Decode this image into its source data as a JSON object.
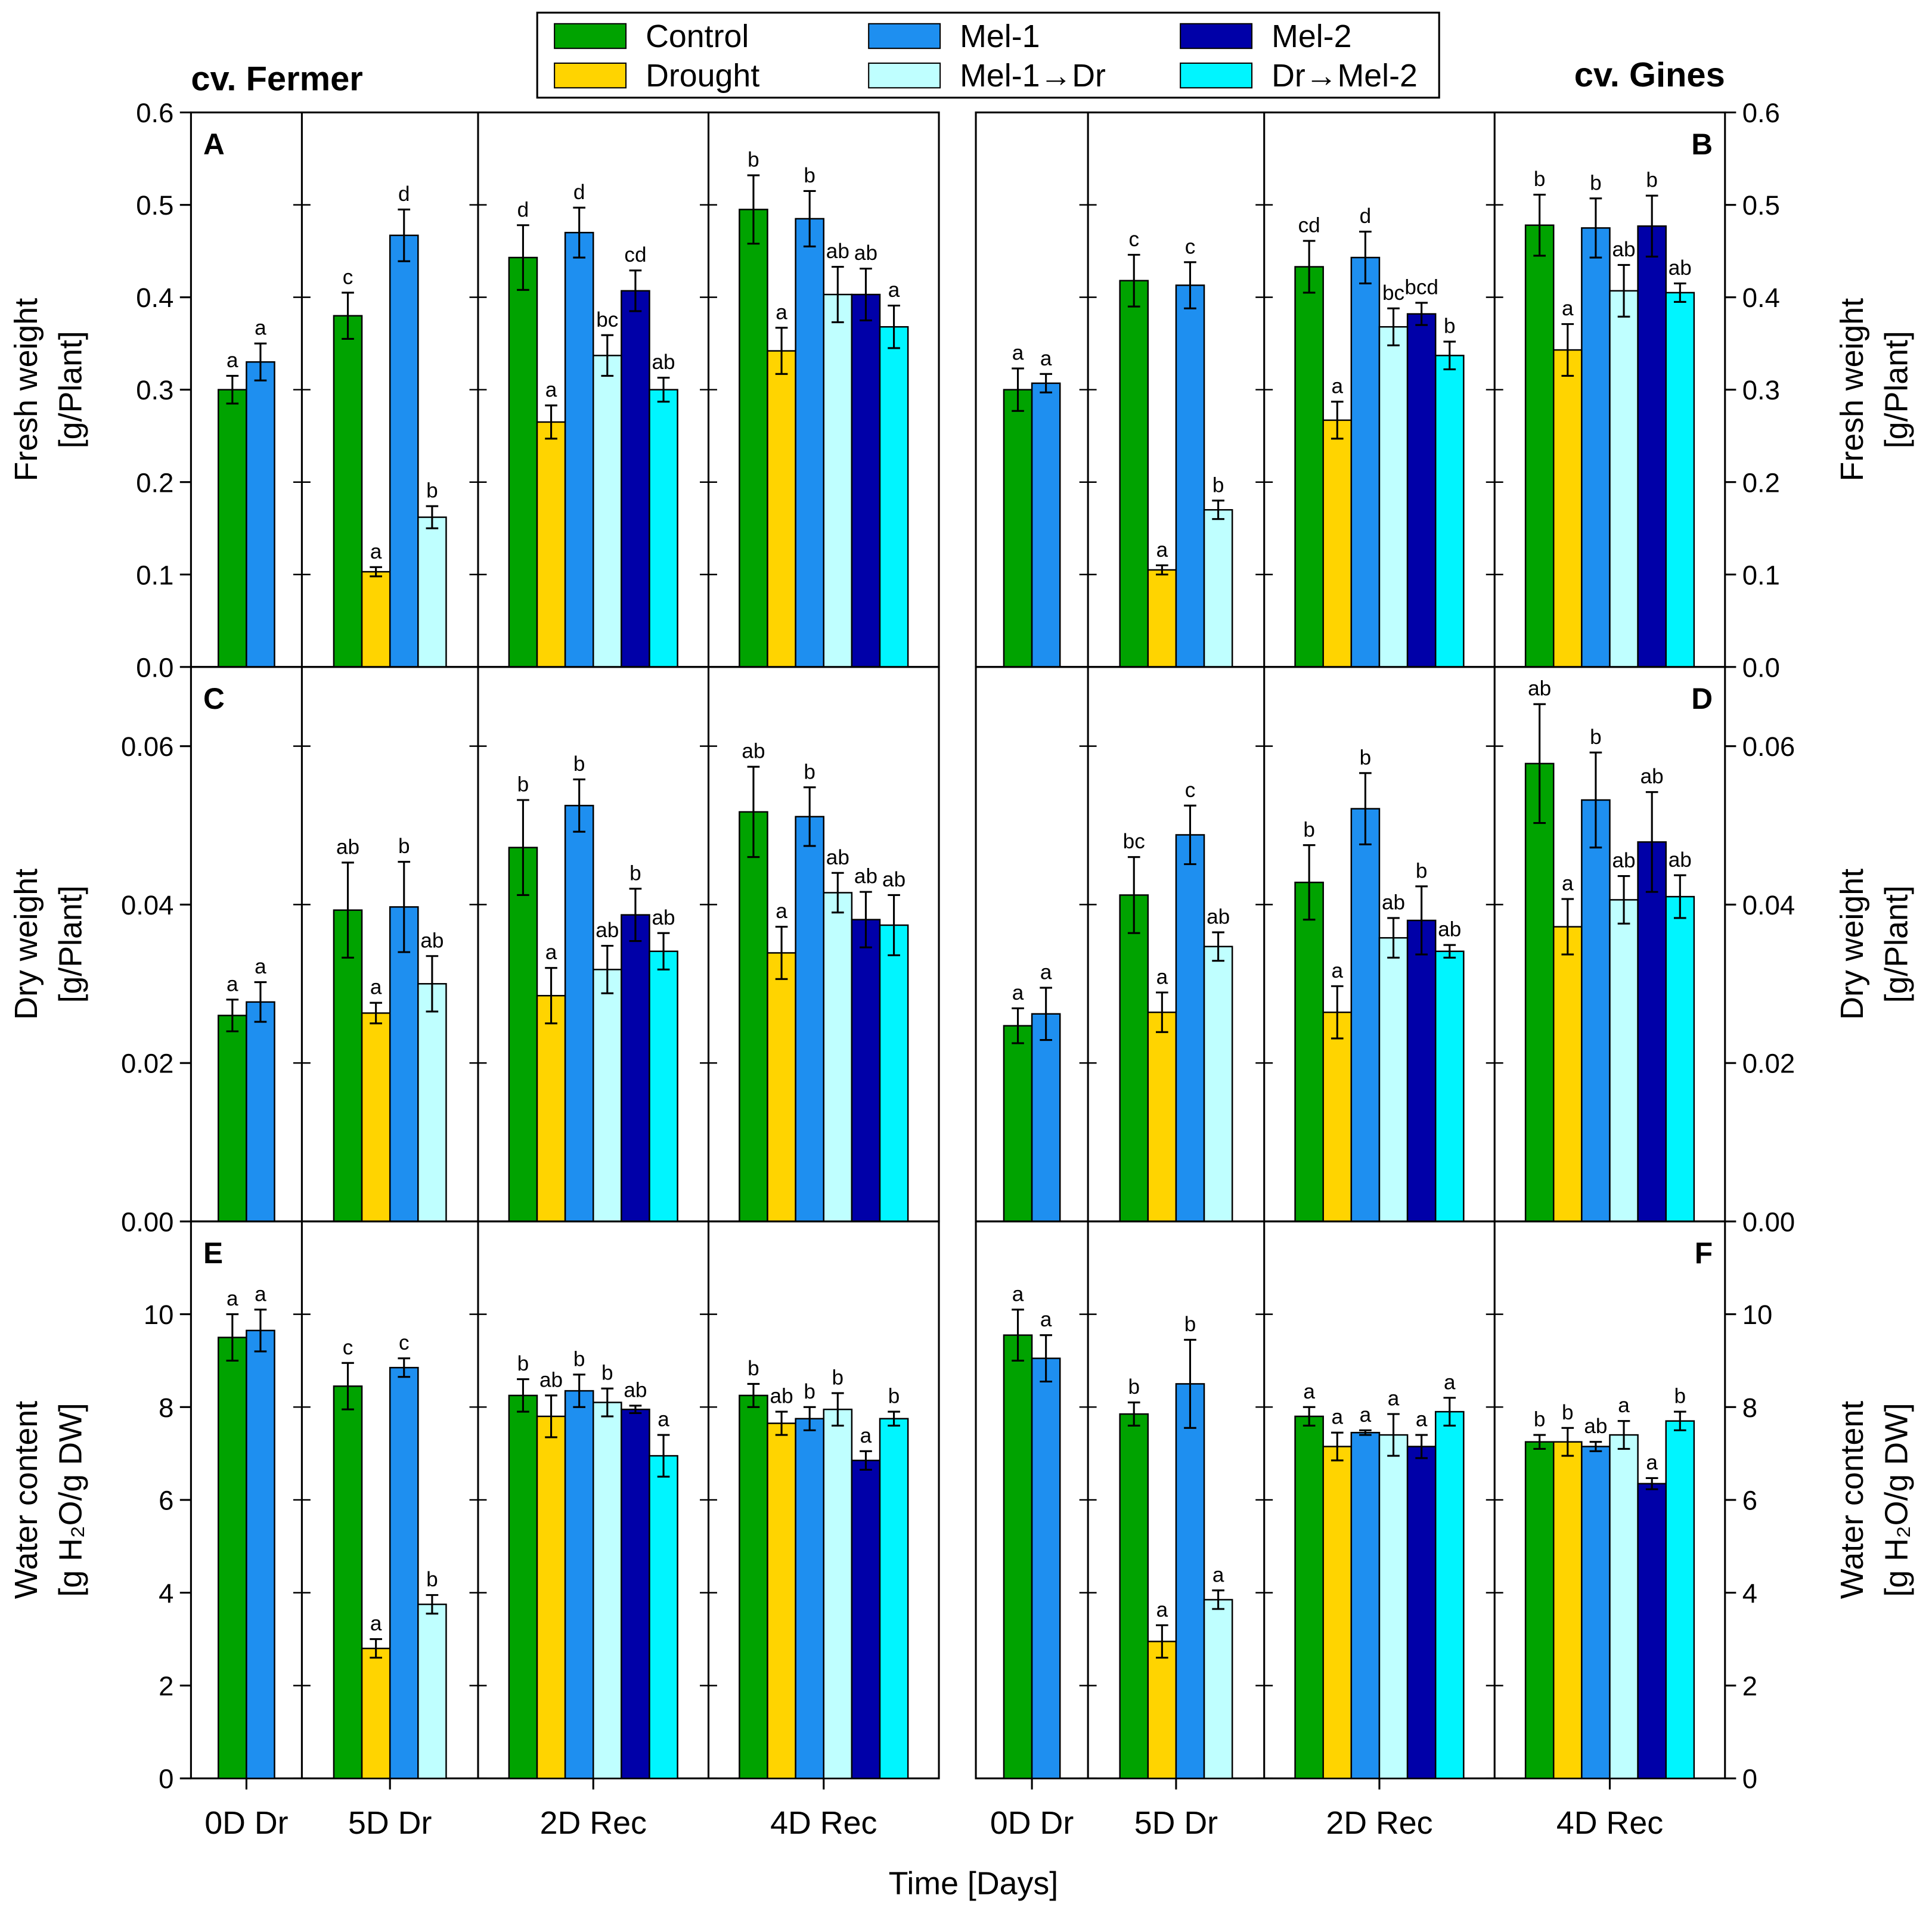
{
  "legend": [
    {
      "name": "Control",
      "color": "#00A300"
    },
    {
      "name": "Drought",
      "color": "#FFD400"
    },
    {
      "name": "Mel-1",
      "color": "#1E8FF0"
    },
    {
      "name": "Mel-1→Dr",
      "color": "#BFFFFF"
    },
    {
      "name": "Mel-2",
      "color": "#0000A8"
    },
    {
      "name": "Dr→Mel-2",
      "color": "#00F5FF"
    }
  ],
  "cultivars": [
    "cv. Fermer",
    "cv. Gines"
  ],
  "xlabel": "Time [Days]",
  "chart_data": [
    {
      "type": "bar",
      "panel": "A",
      "cultivar": "cv. Fermer",
      "ylabel": [
        "Fresh weight",
        "[g/Plant]"
      ],
      "ylim": [
        0,
        0.6
      ],
      "ticks": [
        "0.0",
        "0.1",
        "0.2",
        "0.3",
        "0.4",
        "0.5",
        "0.6"
      ],
      "groups": [
        {
          "label": "0D Dr",
          "bars": [
            [
              "Control",
              0.3,
              0.015,
              "a"
            ],
            [
              "Mel-1",
              0.33,
              0.02,
              "a"
            ]
          ]
        },
        {
          "label": "5D Dr",
          "bars": [
            [
              "Control",
              0.38,
              0.025,
              "c"
            ],
            [
              "Drought",
              0.103,
              0.005,
              "a"
            ],
            [
              "Mel-1",
              0.467,
              0.028,
              "d"
            ],
            [
              "Mel-1→Dr",
              0.162,
              0.012,
              "b"
            ]
          ]
        },
        {
          "label": "2D Rec",
          "bars": [
            [
              "Control",
              0.443,
              0.035,
              "d"
            ],
            [
              "Drought",
              0.265,
              0.018,
              "a"
            ],
            [
              "Mel-1",
              0.47,
              0.027,
              "d"
            ],
            [
              "Mel-1→Dr",
              0.337,
              0.022,
              "bc"
            ],
            [
              "Mel-2",
              0.407,
              0.022,
              "cd"
            ],
            [
              "Dr→Mel-2",
              0.3,
              0.013,
              "ab"
            ]
          ]
        },
        {
          "label": "4D Rec",
          "bars": [
            [
              "Control",
              0.495,
              0.037,
              "b"
            ],
            [
              "Drought",
              0.342,
              0.025,
              "a"
            ],
            [
              "Mel-1",
              0.485,
              0.03,
              "b"
            ],
            [
              "Mel-1→Dr",
              0.403,
              0.03,
              "ab"
            ],
            [
              "Mel-2",
              0.403,
              0.028,
              "ab"
            ],
            [
              "Dr→Mel-2",
              0.368,
              0.023,
              "a"
            ]
          ]
        }
      ]
    },
    {
      "type": "bar",
      "panel": "B",
      "cultivar": "cv. Gines",
      "ylabel": [
        "Fresh weight",
        "[g/Plant]"
      ],
      "ylim": [
        0,
        0.6
      ],
      "ticks": [
        "0.0",
        "0.1",
        "0.2",
        "0.3",
        "0.4",
        "0.5",
        "0.6"
      ],
      "groups": [
        {
          "label": "0D Dr",
          "bars": [
            [
              "Control",
              0.3,
              0.023,
              "a"
            ],
            [
              "Mel-1",
              0.307,
              0.01,
              "a"
            ]
          ]
        },
        {
          "label": "5D Dr",
          "bars": [
            [
              "Control",
              0.418,
              0.028,
              "c"
            ],
            [
              "Drought",
              0.105,
              0.005,
              "a"
            ],
            [
              "Mel-1",
              0.413,
              0.025,
              "c"
            ],
            [
              "Mel-1→Dr",
              0.17,
              0.01,
              "b"
            ]
          ]
        },
        {
          "label": "2D Rec",
          "bars": [
            [
              "Control",
              0.433,
              0.028,
              "cd"
            ],
            [
              "Drought",
              0.267,
              0.02,
              "a"
            ],
            [
              "Mel-1",
              0.443,
              0.028,
              "d"
            ],
            [
              "Mel-1→Dr",
              0.368,
              0.02,
              "bc"
            ],
            [
              "Mel-2",
              0.382,
              0.012,
              "bcd"
            ],
            [
              "Dr→Mel-2",
              0.337,
              0.015,
              "b"
            ]
          ]
        },
        {
          "label": "4D Rec",
          "bars": [
            [
              "Control",
              0.478,
              0.033,
              "b"
            ],
            [
              "Drought",
              0.343,
              0.028,
              "a"
            ],
            [
              "Mel-1",
              0.475,
              0.032,
              "b"
            ],
            [
              "Mel-1→Dr",
              0.407,
              0.028,
              "ab"
            ],
            [
              "Mel-2",
              0.477,
              0.033,
              "b"
            ],
            [
              "Dr→Mel-2",
              0.405,
              0.01,
              "ab"
            ]
          ]
        }
      ]
    },
    {
      "type": "bar",
      "panel": "C",
      "cultivar": "cv. Fermer",
      "ylabel": [
        "Dry weight",
        "[g/Plant]"
      ],
      "ylim": [
        0,
        0.07
      ],
      "ticks": [
        "0.00",
        "0.02",
        "0.04",
        "0.06"
      ],
      "groups": [
        {
          "label": "0D Dr",
          "bars": [
            [
              "Control",
              0.026,
              0.002,
              "a"
            ],
            [
              "Mel-1",
              0.0277,
              0.0025,
              "a"
            ]
          ]
        },
        {
          "label": "5D Dr",
          "bars": [
            [
              "Control",
              0.0393,
              0.006,
              "ab"
            ],
            [
              "Drought",
              0.0263,
              0.0013,
              "a"
            ],
            [
              "Mel-1",
              0.0397,
              0.0057,
              "b"
            ],
            [
              "Mel-1→Dr",
              0.03,
              0.0035,
              "ab"
            ]
          ]
        },
        {
          "label": "2D Rec",
          "bars": [
            [
              "Control",
              0.0472,
              0.006,
              "b"
            ],
            [
              "Drought",
              0.0285,
              0.0035,
              "a"
            ],
            [
              "Mel-1",
              0.0525,
              0.0033,
              "b"
            ],
            [
              "Mel-1→Dr",
              0.0318,
              0.003,
              "ab"
            ],
            [
              "Mel-2",
              0.0387,
              0.0033,
              "b"
            ],
            [
              "Dr→Mel-2",
              0.0341,
              0.0023,
              "ab"
            ]
          ]
        },
        {
          "label": "4D Rec",
          "bars": [
            [
              "Control",
              0.0517,
              0.0057,
              "ab"
            ],
            [
              "Drought",
              0.0339,
              0.0033,
              "a"
            ],
            [
              "Mel-1",
              0.0511,
              0.0037,
              "b"
            ],
            [
              "Mel-1→Dr",
              0.0415,
              0.0025,
              "ab"
            ],
            [
              "Mel-2",
              0.0381,
              0.0035,
              "ab"
            ],
            [
              "Dr→Mel-2",
              0.0374,
              0.0038,
              "ab"
            ]
          ]
        }
      ]
    },
    {
      "type": "bar",
      "panel": "D",
      "cultivar": "cv. Gines",
      "ylabel": [
        "Dry weight",
        "[g/Plant]"
      ],
      "ylim": [
        0,
        0.07
      ],
      "ticks": [
        "0.00",
        "0.02",
        "0.04",
        "0.06"
      ],
      "groups": [
        {
          "label": "0D Dr",
          "bars": [
            [
              "Control",
              0.0247,
              0.0022,
              "a"
            ],
            [
              "Mel-1",
              0.0262,
              0.0033,
              "a"
            ]
          ]
        },
        {
          "label": "5D Dr",
          "bars": [
            [
              "Control",
              0.0412,
              0.0048,
              "bc"
            ],
            [
              "Drought",
              0.0264,
              0.0025,
              "a"
            ],
            [
              "Mel-1",
              0.0488,
              0.0037,
              "c"
            ],
            [
              "Mel-1→Dr",
              0.0347,
              0.0018,
              "ab"
            ]
          ]
        },
        {
          "label": "2D Rec",
          "bars": [
            [
              "Control",
              0.0428,
              0.0047,
              "b"
            ],
            [
              "Drought",
              0.0264,
              0.0033,
              "a"
            ],
            [
              "Mel-1",
              0.0521,
              0.0045,
              "b"
            ],
            [
              "Mel-1→Dr",
              0.0358,
              0.0025,
              "ab"
            ],
            [
              "Mel-2",
              0.038,
              0.0043,
              "b"
            ],
            [
              "Dr→Mel-2",
              0.0341,
              0.0008,
              "ab"
            ]
          ]
        },
        {
          "label": "4D Rec",
          "bars": [
            [
              "Control",
              0.0578,
              0.0075,
              "ab"
            ],
            [
              "Drought",
              0.0372,
              0.0035,
              "a"
            ],
            [
              "Mel-1",
              0.0532,
              0.006,
              "b"
            ],
            [
              "Mel-1→Dr",
              0.0406,
              0.003,
              "ab"
            ],
            [
              "Mel-2",
              0.0479,
              0.0063,
              "ab"
            ],
            [
              "Dr→Mel-2",
              0.041,
              0.0027,
              "ab"
            ]
          ]
        }
      ]
    },
    {
      "type": "bar",
      "panel": "E",
      "cultivar": "cv. Fermer",
      "ylabel": [
        "Water content",
        "[g H₂O/g DW]"
      ],
      "ylim": [
        0,
        12
      ],
      "ticks": [
        "0",
        "2",
        "4",
        "6",
        "8",
        "10"
      ],
      "groups": [
        {
          "label": "0D Dr",
          "bars": [
            [
              "Control",
              9.5,
              0.5,
              "a"
            ],
            [
              "Mel-1",
              9.65,
              0.45,
              "a"
            ]
          ]
        },
        {
          "label": "5D Dr",
          "bars": [
            [
              "Control",
              8.45,
              0.5,
              "c"
            ],
            [
              "Drought",
              2.8,
              0.2,
              "a"
            ],
            [
              "Mel-1",
              8.85,
              0.2,
              "c"
            ],
            [
              "Mel-1→Dr",
              3.75,
              0.2,
              "b"
            ]
          ]
        },
        {
          "label": "2D Rec",
          "bars": [
            [
              "Control",
              8.25,
              0.35,
              "b"
            ],
            [
              "Drought",
              7.8,
              0.45,
              "ab"
            ],
            [
              "Mel-1",
              8.35,
              0.35,
              "b"
            ],
            [
              "Mel-1→Dr",
              8.1,
              0.3,
              "b"
            ],
            [
              "Mel-2",
              7.95,
              0.08,
              "ab"
            ],
            [
              "Dr→Mel-2",
              6.95,
              0.45,
              "a"
            ]
          ]
        },
        {
          "label": "4D Rec",
          "bars": [
            [
              "Control",
              8.25,
              0.25,
              "b"
            ],
            [
              "Drought",
              7.65,
              0.25,
              "ab"
            ],
            [
              "Mel-1",
              7.75,
              0.25,
              "b"
            ],
            [
              "Mel-1→Dr",
              7.95,
              0.35,
              "b"
            ],
            [
              "Mel-2",
              6.85,
              0.2,
              "a"
            ],
            [
              "Dr→Mel-2",
              7.75,
              0.15,
              "b"
            ]
          ]
        }
      ]
    },
    {
      "type": "bar",
      "panel": "F",
      "cultivar": "cv. Gines",
      "ylabel": [
        "Water content",
        "[g H₂O/g DW]"
      ],
      "ylim": [
        0,
        12
      ],
      "ticks": [
        "0",
        "2",
        "4",
        "6",
        "8",
        "10"
      ],
      "groups": [
        {
          "label": "0D Dr",
          "bars": [
            [
              "Control",
              9.55,
              0.55,
              "a"
            ],
            [
              "Mel-1",
              9.05,
              0.5,
              "a"
            ]
          ]
        },
        {
          "label": "5D Dr",
          "bars": [
            [
              "Control",
              7.85,
              0.25,
              "b"
            ],
            [
              "Drought",
              2.95,
              0.35,
              "a"
            ],
            [
              "Mel-1",
              8.5,
              0.95,
              "b"
            ],
            [
              "Mel-1→Dr",
              3.85,
              0.2,
              "a"
            ]
          ]
        },
        {
          "label": "2D Rec",
          "bars": [
            [
              "Control",
              7.8,
              0.2,
              "a"
            ],
            [
              "Drought",
              7.15,
              0.3,
              "a"
            ],
            [
              "Mel-1",
              7.45,
              0.05,
              "a"
            ],
            [
              "Mel-1→Dr",
              7.4,
              0.45,
              "a"
            ],
            [
              "Mel-2",
              7.15,
              0.25,
              "a"
            ],
            [
              "Dr→Mel-2",
              7.9,
              0.3,
              "a"
            ]
          ]
        },
        {
          "label": "4D Rec",
          "bars": [
            [
              "Control",
              7.25,
              0.15,
              "b"
            ],
            [
              "Drought",
              7.25,
              0.3,
              "b"
            ],
            [
              "Mel-1",
              7.15,
              0.1,
              "ab"
            ],
            [
              "Mel-1→Dr",
              7.4,
              0.3,
              "a"
            ],
            [
              "Mel-2",
              6.35,
              0.12,
              "a"
            ],
            [
              "Dr→Mel-2",
              7.7,
              0.2,
              "b"
            ]
          ]
        }
      ]
    }
  ]
}
